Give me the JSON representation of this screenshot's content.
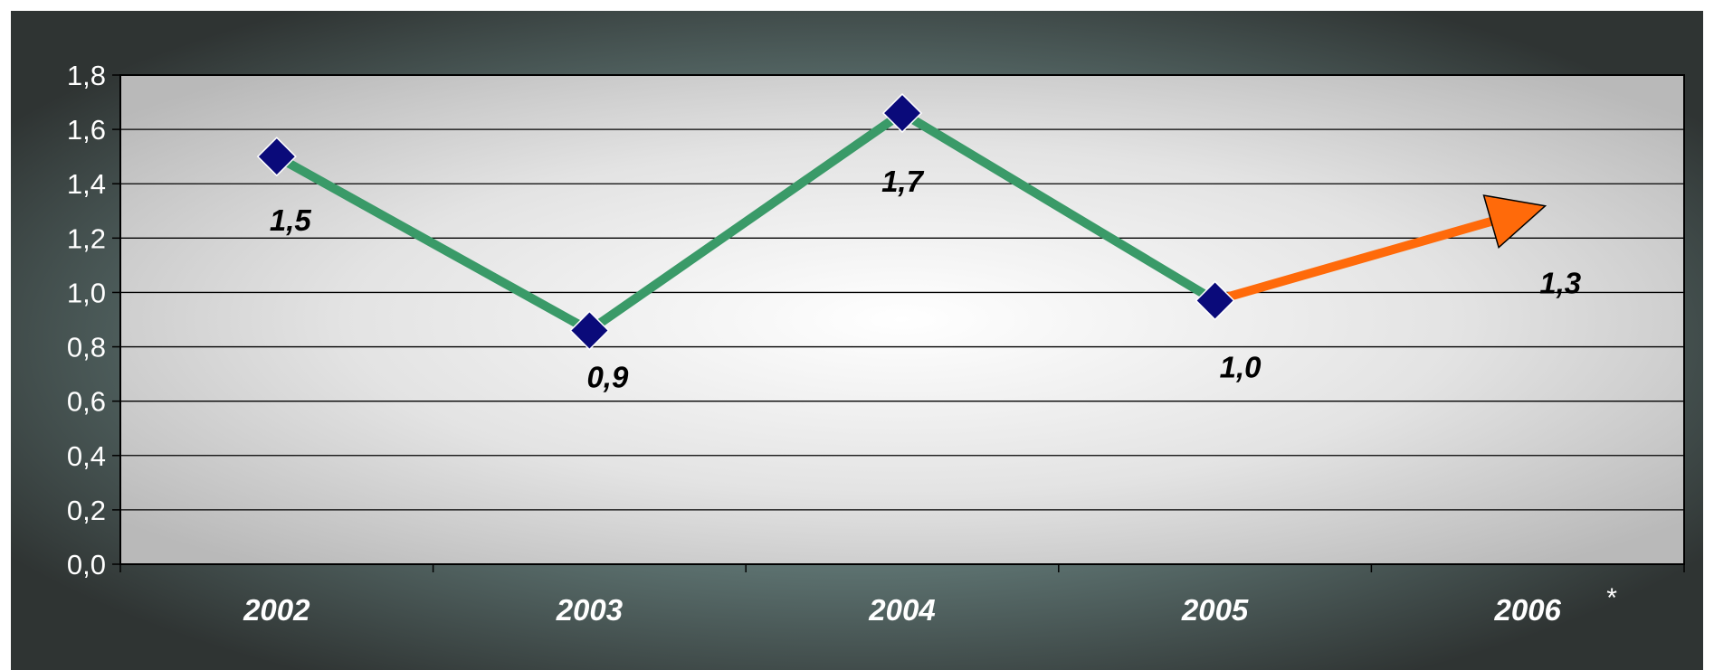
{
  "chart_data": {
    "type": "line",
    "categories": [
      "2002",
      "2003",
      "2004",
      "2005",
      "2006"
    ],
    "values": [
      1.5,
      0.86,
      1.66,
      0.97,
      1.3
    ],
    "data_labels": [
      "1,5",
      "0,9",
      "1,7",
      "1,0",
      "1,3"
    ],
    "y_tick_labels": [
      "0,0",
      "0,2",
      "0,4",
      "0,6",
      "0,8",
      "1,0",
      "1,2",
      "1,4",
      "1,6",
      "1,8"
    ],
    "ylim": [
      0,
      1.8
    ],
    "grid": true,
    "annotation": "*",
    "colors": {
      "actual_line": "#3a9a68",
      "forecast_arrow": "#ff6a0a",
      "marker": "#0a0a7a"
    }
  }
}
